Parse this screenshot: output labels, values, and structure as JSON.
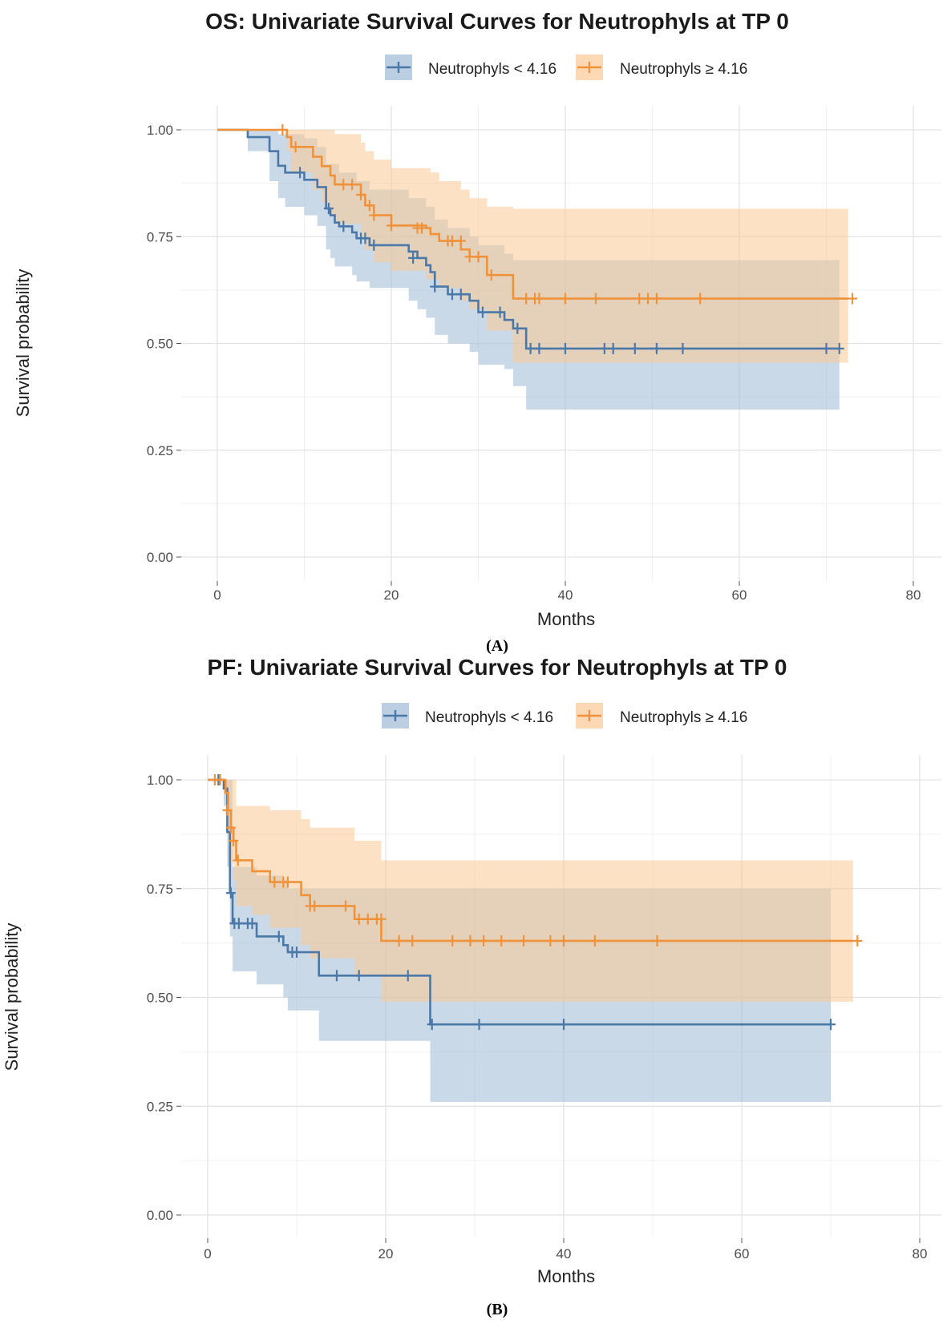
{
  "chart_data": [
    {
      "type": "line",
      "subtype": "kaplan-meier",
      "panel_label": "(A)",
      "title": "OS: Univariate Survival Curves for Neutrophyls at TP 0",
      "xlabel": "Months",
      "ylabel": "Survival probability",
      "xlim": [
        0,
        82
      ],
      "ylim": [
        0,
        1.02
      ],
      "xticks": [
        0,
        20,
        40,
        60,
        80
      ],
      "yticks": [
        0,
        0.25,
        0.5,
        0.75,
        1.0
      ],
      "ytick_labels": [
        "0.00",
        "0.25",
        "0.50",
        "0.75",
        "1.00"
      ],
      "xtick_labels": [
        "0",
        "20",
        "40",
        "60",
        "80"
      ],
      "grid": true,
      "legend_position": "top",
      "series": [
        {
          "name": "Neutrophyls < 4.16",
          "color": "#4a78a8",
          "band_color": "#9fb9d6",
          "steps": [
            [
              0,
              1.0
            ],
            [
              3.5,
              0.983
            ],
            [
              6,
              0.95
            ],
            [
              7,
              0.916
            ],
            [
              7.8,
              0.9
            ],
            [
              10,
              0.883
            ],
            [
              11.5,
              0.866
            ],
            [
              12.5,
              0.816
            ],
            [
              13,
              0.8
            ],
            [
              13.5,
              0.783
            ],
            [
              14,
              0.774
            ],
            [
              15.5,
              0.76
            ],
            [
              16,
              0.746
            ],
            [
              17.5,
              0.73
            ],
            [
              22,
              0.715
            ],
            [
              23,
              0.7
            ],
            [
              24,
              0.683
            ],
            [
              24.5,
              0.667
            ],
            [
              25,
              0.633
            ],
            [
              26.5,
              0.615
            ],
            [
              29,
              0.6
            ],
            [
              30,
              0.573
            ],
            [
              32,
              0.573
            ],
            [
              33,
              0.555
            ],
            [
              34,
              0.535
            ],
            [
              35.5,
              0.488
            ],
            [
              71.5,
              0.488
            ]
          ],
          "lower": [
            [
              0,
              1.0
            ],
            [
              3.5,
              0.95
            ],
            [
              6,
              0.88
            ],
            [
              7,
              0.84
            ],
            [
              7.8,
              0.82
            ],
            [
              10,
              0.8
            ],
            [
              11.5,
              0.775
            ],
            [
              12.5,
              0.72
            ],
            [
              13,
              0.7
            ],
            [
              13.5,
              0.68
            ],
            [
              15.5,
              0.66
            ],
            [
              16,
              0.645
            ],
            [
              17.5,
              0.63
            ],
            [
              22,
              0.6
            ],
            [
              23,
              0.58
            ],
            [
              24,
              0.56
            ],
            [
              25,
              0.52
            ],
            [
              26.5,
              0.5
            ],
            [
              29,
              0.48
            ],
            [
              30,
              0.45
            ],
            [
              33,
              0.44
            ],
            [
              34,
              0.4
            ],
            [
              35.5,
              0.345
            ],
            [
              71.5,
              0.345
            ]
          ],
          "upper": [
            [
              0,
              1.0
            ],
            [
              6,
              1.0
            ],
            [
              7,
              0.99
            ],
            [
              10,
              0.98
            ],
            [
              11.5,
              0.96
            ],
            [
              12.5,
              0.92
            ],
            [
              14,
              0.9
            ],
            [
              16,
              0.88
            ],
            [
              17.5,
              0.86
            ],
            [
              22,
              0.84
            ],
            [
              24,
              0.82
            ],
            [
              25,
              0.79
            ],
            [
              26.5,
              0.77
            ],
            [
              29,
              0.75
            ],
            [
              30,
              0.73
            ],
            [
              33,
              0.71
            ],
            [
              34,
              0.695
            ],
            [
              35.5,
              0.695
            ],
            [
              71.5,
              0.695
            ]
          ],
          "censor_x": [
            9.5,
            12.8,
            14.5,
            16.5,
            17,
            18,
            22.5,
            25,
            27,
            28,
            30.5,
            32.5,
            34.5,
            36,
            37,
            40,
            44.5,
            45.5,
            48,
            50.5,
            53.5,
            70,
            71.5
          ],
          "censor_y": [
            0.9,
            0.816,
            0.774,
            0.746,
            0.746,
            0.73,
            0.7,
            0.633,
            0.615,
            0.615,
            0.573,
            0.573,
            0.535,
            0.488,
            0.488,
            0.488,
            0.488,
            0.488,
            0.488,
            0.488,
            0.488,
            0.488,
            0.488
          ]
        },
        {
          "name": "Neutrophyls ≥ 4.16",
          "color": "#f0923a",
          "band_color": "#fbc894",
          "steps": [
            [
              0,
              1.0
            ],
            [
              8,
              0.983
            ],
            [
              8.5,
              0.96
            ],
            [
              11,
              0.937
            ],
            [
              12,
              0.915
            ],
            [
              13,
              0.893
            ],
            [
              13.5,
              0.872
            ],
            [
              16.5,
              0.848
            ],
            [
              17,
              0.823
            ],
            [
              18,
              0.8
            ],
            [
              19.5,
              0.8
            ],
            [
              20,
              0.776
            ],
            [
              24,
              0.77
            ],
            [
              24.5,
              0.756
            ],
            [
              25.5,
              0.74
            ],
            [
              28,
              0.72
            ],
            [
              29,
              0.703
            ],
            [
              31,
              0.66
            ],
            [
              34,
              0.605
            ],
            [
              72.5,
              0.605
            ]
          ],
          "lower": [
            [
              0,
              1.0
            ],
            [
              8,
              0.95
            ],
            [
              8.5,
              0.9
            ],
            [
              11,
              0.86
            ],
            [
              12,
              0.83
            ],
            [
              13,
              0.8
            ],
            [
              13.5,
              0.78
            ],
            [
              16.5,
              0.75
            ],
            [
              17,
              0.72
            ],
            [
              18,
              0.69
            ],
            [
              20,
              0.67
            ],
            [
              24,
              0.65
            ],
            [
              25.5,
              0.63
            ],
            [
              28,
              0.6
            ],
            [
              29,
              0.58
            ],
            [
              31,
              0.53
            ],
            [
              34,
              0.455
            ],
            [
              72.5,
              0.455
            ]
          ],
          "upper": [
            [
              0,
              1.0
            ],
            [
              13,
              1.0
            ],
            [
              13.5,
              0.99
            ],
            [
              16.5,
              0.97
            ],
            [
              17,
              0.95
            ],
            [
              18,
              0.93
            ],
            [
              20,
              0.91
            ],
            [
              24.5,
              0.9
            ],
            [
              25.5,
              0.88
            ],
            [
              28,
              0.86
            ],
            [
              29,
              0.84
            ],
            [
              31,
              0.82
            ],
            [
              34,
              0.815
            ],
            [
              72.5,
              0.815
            ]
          ],
          "censor_x": [
            7.5,
            9,
            14.5,
            15.5,
            16.5,
            17.5,
            18,
            20,
            23,
            23.5,
            26.5,
            27,
            28,
            29,
            30,
            31.5,
            35.5,
            36.5,
            37,
            40,
            43.5,
            48.5,
            49.5,
            50.5,
            55.5,
            73
          ],
          "censor_y": [
            1.0,
            0.96,
            0.872,
            0.872,
            0.848,
            0.823,
            0.8,
            0.776,
            0.77,
            0.77,
            0.74,
            0.74,
            0.74,
            0.703,
            0.703,
            0.66,
            0.605,
            0.605,
            0.605,
            0.605,
            0.605,
            0.605,
            0.605,
            0.605,
            0.605,
            0.605
          ]
        }
      ]
    },
    {
      "type": "line",
      "subtype": "kaplan-meier",
      "panel_label": "(B)",
      "title": "PF: Univariate Survival Curves for Neutrophyls at TP 0",
      "xlabel": "Months",
      "ylabel": "Survival probability",
      "xlim": [
        0,
        82
      ],
      "ylim": [
        0,
        1.02
      ],
      "xticks": [
        0,
        20,
        40,
        60,
        80
      ],
      "yticks": [
        0,
        0.25,
        0.5,
        0.75,
        1.0
      ],
      "ytick_labels": [
        "0.00",
        "0.25",
        "0.50",
        "0.75",
        "1.00"
      ],
      "xtick_labels": [
        "0",
        "20",
        "40",
        "60",
        "80"
      ],
      "grid": true,
      "legend_position": "top",
      "series": [
        {
          "name": "Neutrophyls < 4.16",
          "color": "#4a78a8",
          "band_color": "#9fb9d6",
          "steps": [
            [
              0,
              1.0
            ],
            [
              1.8,
              0.98
            ],
            [
              2.2,
              0.88
            ],
            [
              2.5,
              0.74
            ],
            [
              2.8,
              0.67
            ],
            [
              5.5,
              0.64
            ],
            [
              8.5,
              0.62
            ],
            [
              9,
              0.604
            ],
            [
              12.5,
              0.55
            ],
            [
              25,
              0.438
            ],
            [
              70,
              0.438
            ]
          ],
          "lower": [
            [
              0,
              1.0
            ],
            [
              1.8,
              0.94
            ],
            [
              2.2,
              0.8
            ],
            [
              2.5,
              0.64
            ],
            [
              2.8,
              0.56
            ],
            [
              5.5,
              0.53
            ],
            [
              8.5,
              0.5
            ],
            [
              9,
              0.47
            ],
            [
              12.5,
              0.4
            ],
            [
              25,
              0.26
            ],
            [
              70,
              0.26
            ]
          ],
          "upper": [
            [
              0,
              1.0
            ],
            [
              2.5,
              1.0
            ],
            [
              2.8,
              0.8
            ],
            [
              5.5,
              0.78
            ],
            [
              8.5,
              0.77
            ],
            [
              9,
              0.75
            ],
            [
              12.5,
              0.75
            ],
            [
              70,
              0.75
            ]
          ],
          "censor_x": [
            1.2,
            2.6,
            3,
            3.5,
            4.5,
            5,
            8,
            9.5,
            10,
            14.5,
            17,
            22.5,
            25.2,
            30.5,
            40,
            70
          ],
          "censor_y": [
            1.0,
            0.74,
            0.67,
            0.67,
            0.67,
            0.67,
            0.64,
            0.604,
            0.604,
            0.55,
            0.55,
            0.55,
            0.438,
            0.438,
            0.438,
            0.438
          ]
        },
        {
          "name": "Neutrophyls ≥ 4.16",
          "color": "#f0923a",
          "band_color": "#fbc894",
          "steps": [
            [
              0,
              1.0
            ],
            [
              2,
              0.97
            ],
            [
              2.3,
              0.93
            ],
            [
              2.6,
              0.89
            ],
            [
              2.9,
              0.86
            ],
            [
              3.2,
              0.815
            ],
            [
              5,
              0.79
            ],
            [
              7,
              0.765
            ],
            [
              10.5,
              0.735
            ],
            [
              11.5,
              0.71
            ],
            [
              16.5,
              0.68
            ],
            [
              19.5,
              0.63
            ],
            [
              72.5,
              0.63
            ]
          ],
          "lower": [
            [
              0,
              1.0
            ],
            [
              2,
              0.92
            ],
            [
              2.3,
              0.86
            ],
            [
              2.6,
              0.81
            ],
            [
              2.9,
              0.77
            ],
            [
              3.2,
              0.71
            ],
            [
              5,
              0.69
            ],
            [
              7,
              0.66
            ],
            [
              10.5,
              0.62
            ],
            [
              11.5,
              0.59
            ],
            [
              16.5,
              0.55
            ],
            [
              19.5,
              0.49
            ],
            [
              72.5,
              0.49
            ]
          ],
          "upper": [
            [
              0,
              1.0
            ],
            [
              2.9,
              1.0
            ],
            [
              3.2,
              0.94
            ],
            [
              7,
              0.93
            ],
            [
              10.5,
              0.91
            ],
            [
              11.5,
              0.89
            ],
            [
              16.5,
              0.86
            ],
            [
              19.5,
              0.815
            ],
            [
              72.5,
              0.815
            ]
          ],
          "censor_x": [
            0.8,
            1.4,
            2.2,
            2.6,
            2.9,
            3.4,
            7.5,
            8.5,
            9,
            11.5,
            12,
            15.5,
            17,
            18,
            19,
            19.5,
            21.5,
            23,
            27.5,
            29.5,
            31,
            33,
            35.5,
            38.5,
            40,
            43.5,
            50.5,
            73
          ],
          "censor_y": [
            1.0,
            1.0,
            0.93,
            0.89,
            0.86,
            0.815,
            0.765,
            0.765,
            0.765,
            0.71,
            0.71,
            0.71,
            0.68,
            0.68,
            0.68,
            0.68,
            0.63,
            0.63,
            0.63,
            0.63,
            0.63,
            0.63,
            0.63,
            0.63,
            0.63,
            0.63,
            0.63,
            0.63
          ]
        }
      ]
    }
  ]
}
